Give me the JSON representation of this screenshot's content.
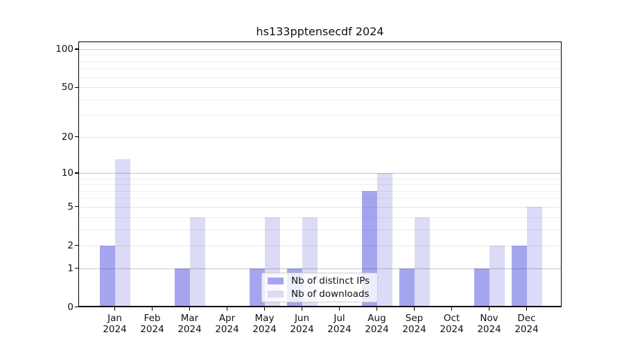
{
  "title": "hs133pptensecdf 2024",
  "legend": {
    "items": [
      {
        "label": "Nb of distinct IPs",
        "color": "#a5a5ef"
      },
      {
        "label": "Nb of downloads",
        "color": "#dbdbf7"
      }
    ],
    "position": "lower center"
  },
  "axes": {
    "y_tick_labels": [
      "0",
      "1",
      "2",
      "5",
      "10",
      "20",
      "50",
      "100"
    ],
    "x_tick_labels": [
      "Jan 2024",
      "Feb 2024",
      "Mar 2024",
      "Apr 2024",
      "May 2024",
      "Jun 2024",
      "Jul 2024",
      "Aug 2024",
      "Sep 2024",
      "Oct 2024",
      "Nov 2024",
      "Dec 2024"
    ]
  },
  "chart_data": {
    "type": "bar",
    "title": "hs133pptensecdf 2024",
    "categories": [
      "Jan 2024",
      "Feb 2024",
      "Mar 2024",
      "Apr 2024",
      "May 2024",
      "Jun 2024",
      "Jul 2024",
      "Aug 2024",
      "Sep 2024",
      "Oct 2024",
      "Nov 2024",
      "Dec 2024"
    ],
    "series": [
      {
        "name": "Nb of distinct IPs",
        "color": "#a5a5ef",
        "values": [
          2,
          0,
          1,
          0,
          1,
          1,
          0,
          7,
          1,
          0,
          1,
          2
        ]
      },
      {
        "name": "Nb of downloads",
        "color": "#dbdbf7",
        "values": [
          13,
          0,
          4,
          0,
          4,
          4,
          0,
          10,
          4,
          0,
          2,
          5
        ]
      }
    ],
    "xlabel": "",
    "ylabel": "",
    "y_scale": "log1p",
    "ylim": [
      0,
      113
    ],
    "y_major_gridlines": [
      1,
      10,
      100
    ],
    "y_mid_gridlines": [
      2,
      5,
      20,
      50
    ],
    "y_minor_gridlines": [
      3,
      4,
      6,
      7,
      8,
      9,
      30,
      40,
      60,
      70,
      80,
      90
    ],
    "grid": true,
    "legend_position": "lower center"
  }
}
